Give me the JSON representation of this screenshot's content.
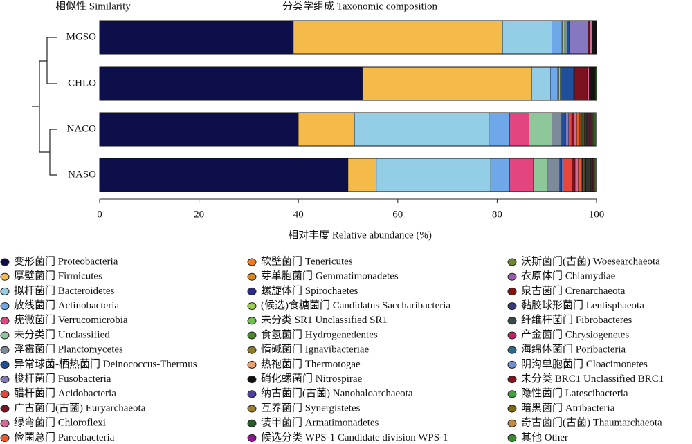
{
  "chart_data": {
    "type": "bar",
    "orientation": "horizontal",
    "stacked": true,
    "title": "分类学组成 Taxonomic composition",
    "dendrogram_title": "相似性 Similarity",
    "xlabel": "相对丰度 Relative abundance (%)",
    "categories": [
      "MGSO",
      "CHLO",
      "NACO",
      "NASO"
    ],
    "xlim": [
      0,
      100
    ],
    "xticks": [
      0,
      20,
      40,
      60,
      80,
      100
    ],
    "series": [
      {
        "name": "变形菌门 Proteobacteria",
        "color": "#0d0f4a",
        "values": [
          39.0,
          52.9,
          40.0,
          50.0
        ]
      },
      {
        "name": "厚壁菌门 Firmicutes",
        "color": "#f5bb4a",
        "values": [
          42.1,
          34.1,
          11.3,
          5.7
        ]
      },
      {
        "name": "拟杆菌门 Bacteroidetes",
        "color": "#94cde6",
        "values": [
          9.9,
          3.7,
          27.1,
          23.0
        ]
      },
      {
        "name": "放线菌门 Actinobacteria",
        "color": "#6fa8e8",
        "values": [
          1.8,
          1.5,
          4.1,
          3.8
        ]
      },
      {
        "name": "疣微菌门 Verrucomicrobia",
        "color": "#e2457f",
        "values": [
          0.3,
          0.2,
          3.9,
          4.8
        ]
      },
      {
        "name": "未分类门 Unclassified",
        "color": "#8ec89a",
        "values": [
          0.5,
          0.3,
          4.6,
          2.8
        ]
      },
      {
        "name": "浮霉菌门 Planctomycetes",
        "color": "#7c8a99",
        "values": [
          0.5,
          0.3,
          2.0,
          2.5
        ]
      },
      {
        "name": "异常球菌-栖热菌门 Deinococcus-Thermus",
        "color": "#1f4e9a",
        "values": [
          0.4,
          2.4,
          0.8,
          0.4
        ]
      },
      {
        "name": "梭杆菌门 Fusobacteria",
        "color": "#8578c0",
        "values": [
          3.8,
          0.1,
          0.6,
          0.2
        ]
      },
      {
        "name": "醋杆菌门 Acidobacteria",
        "color": "#e8453c",
        "values": [
          0.1,
          0.1,
          0.6,
          1.9
        ]
      },
      {
        "name": "广古菌门(古菌) Euryarchaeota",
        "color": "#7a1220",
        "values": [
          0.2,
          2.6,
          0.5,
          0.6
        ]
      },
      {
        "name": "绿弯菌门 Chloroflexi",
        "color": "#d9669a",
        "values": [
          0.6,
          0.3,
          0.5,
          0.6
        ]
      },
      {
        "name": "俭菌总门 Parcubacteria",
        "color": "#f05a2a",
        "values": [
          0.03,
          0.05,
          0.6,
          0.6
        ]
      },
      {
        "name": "软壁菌门 Tenericutes",
        "color": "#f47a20",
        "values": [
          0.03,
          0.05,
          0.12,
          0.11
        ]
      },
      {
        "name": "芽单胞菌门 Gemmatimonadetes",
        "color": "#d98a1e",
        "values": [
          0.03,
          0.05,
          0.12,
          0.11
        ]
      },
      {
        "name": "螺旋体门 Spirochaetes",
        "color": "#2a2a8a",
        "values": [
          0.03,
          0.05,
          0.12,
          0.11
        ]
      },
      {
        "name": "(候选)食糖菌门 Candidatus Saccharibacteria",
        "color": "#9ccc50",
        "values": [
          0.03,
          0.05,
          0.12,
          0.11
        ]
      },
      {
        "name": "未分类 SR1 Unclassified SR1",
        "color": "#70c050",
        "values": [
          0.03,
          0.05,
          0.12,
          0.11
        ]
      },
      {
        "name": "食氢菌门 Hydrogenedentes",
        "color": "#4a8a2a",
        "values": [
          0.03,
          0.05,
          0.12,
          0.11
        ]
      },
      {
        "name": "惰碱菌门 Ignavibacteriae",
        "color": "#8a7a2a",
        "values": [
          0.03,
          0.05,
          0.12,
          0.11
        ]
      },
      {
        "name": "热袍菌门 Thermotogae",
        "color": "#e8a070",
        "values": [
          0.03,
          0.05,
          0.12,
          0.11
        ]
      },
      {
        "name": "硝化螺菌门 Nitrospirae",
        "color": "#111111",
        "values": [
          0.03,
          0.05,
          0.12,
          0.11
        ]
      },
      {
        "name": "纳古菌门(古菌) Nanohaloarchaeota",
        "color": "#5040a0",
        "values": [
          0.03,
          0.05,
          0.12,
          0.11
        ]
      },
      {
        "name": "互养菌门 Synergistetes",
        "color": "#9a8030",
        "values": [
          0.03,
          0.05,
          0.12,
          0.11
        ]
      },
      {
        "name": "装甲菌门 Armatimonadetes",
        "color": "#2a5a2a",
        "values": [
          0.03,
          0.05,
          0.12,
          0.11
        ]
      },
      {
        "name": "候选分类 WPS-1 Candidate division WPS-1",
        "color": "#8a1a8a",
        "values": [
          0.03,
          0.05,
          0.12,
          0.11
        ]
      },
      {
        "name": "沃斯菌门(古菌) Woesearchaeota",
        "color": "#6a8a2a",
        "values": [
          0.03,
          0.05,
          0.12,
          0.11
        ]
      },
      {
        "name": "衣原体门 Chlamydiae",
        "color": "#9a5ab0",
        "values": [
          0.03,
          0.05,
          0.12,
          0.11
        ]
      },
      {
        "name": "泉古菌门 Crenarchaeota",
        "color": "#8a1010",
        "values": [
          0.03,
          0.05,
          0.12,
          0.11
        ]
      },
      {
        "name": "黏胶球形菌门 Lentisphaeota",
        "color": "#3a3a7a",
        "values": [
          0.03,
          0.05,
          0.12,
          0.11
        ]
      },
      {
        "name": "纤维杆菌门 Fibrobacteres",
        "color": "#3a4a4a",
        "values": [
          0.03,
          0.05,
          0.12,
          0.11
        ]
      },
      {
        "name": "产金菌门 Chrysiogenetes",
        "color": "#c02060",
        "values": [
          0.03,
          0.05,
          0.12,
          0.11
        ]
      },
      {
        "name": "海绵体菌门 Poribacteria",
        "color": "#2a6a8a",
        "values": [
          0.03,
          0.05,
          0.12,
          0.11
        ]
      },
      {
        "name": "阴沟单胞菌门 Cloacimonetes",
        "color": "#7090d0",
        "values": [
          0.03,
          0.05,
          0.12,
          0.11
        ]
      },
      {
        "name": "未分类 BRC1 Unclassified BRC1",
        "color": "#8a1020",
        "values": [
          0.03,
          0.05,
          0.12,
          0.11
        ]
      },
      {
        "name": "隐性菌门 Latescibacteria",
        "color": "#40a040",
        "values": [
          0.03,
          0.05,
          0.12,
          0.11
        ]
      },
      {
        "name": "暗黑菌门 Atribacteria",
        "color": "#7a6a10",
        "values": [
          0.03,
          0.05,
          0.12,
          0.11
        ]
      },
      {
        "name": "奇古菌门(古菌) Thaumarchaeota",
        "color": "#c08a40",
        "values": [
          0.03,
          0.05,
          0.12,
          0.11
        ]
      },
      {
        "name": "其他 Other",
        "color": "#3a8a30",
        "values": [
          0.02,
          0.2,
          0.28,
          0.24
        ]
      }
    ]
  }
}
